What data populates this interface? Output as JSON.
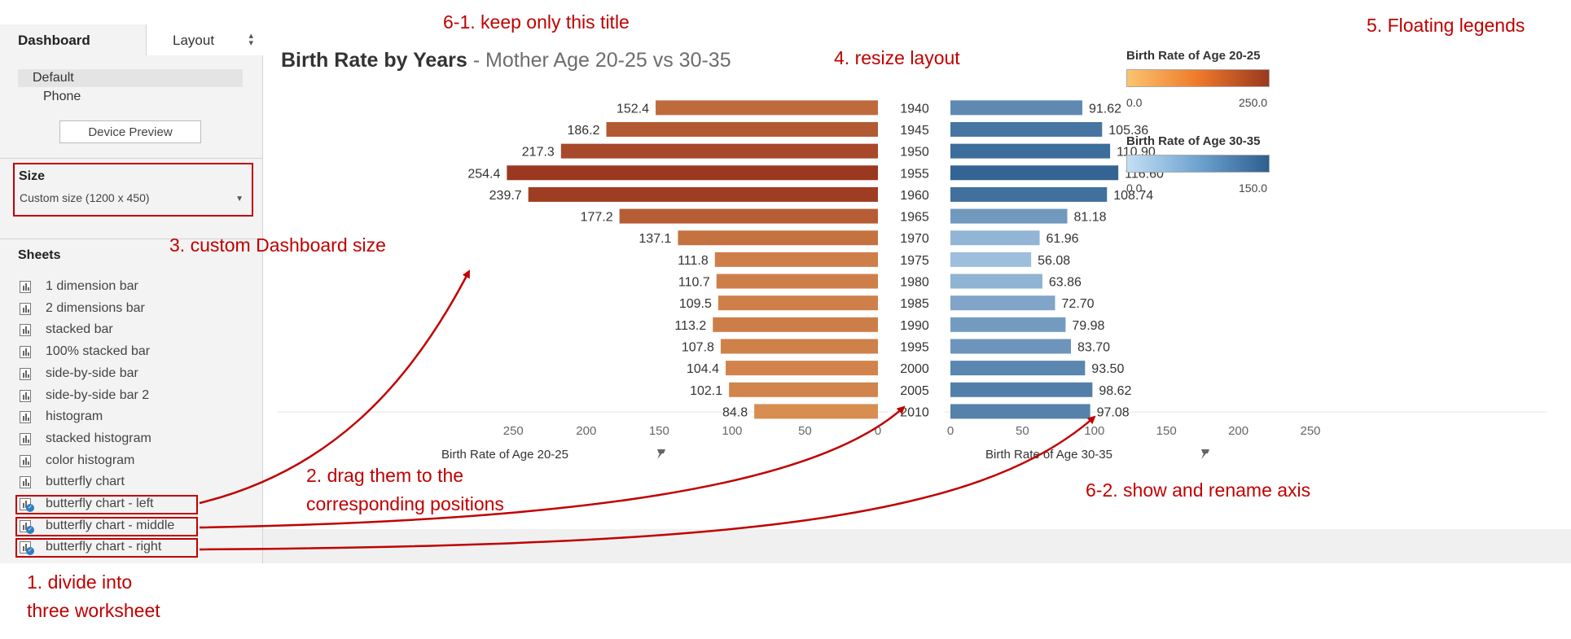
{
  "left_pane": {
    "tabs": {
      "dashboard": "Dashboard",
      "layout": "Layout"
    },
    "devices": {
      "default": "Default",
      "phone": "Phone",
      "preview_button": "Device Preview"
    },
    "size": {
      "title": "Size",
      "value": "Custom size (1200 x 450)"
    },
    "sheets": {
      "title": "Sheets",
      "items": [
        {
          "label": "1 dimension bar"
        },
        {
          "label": "2 dimensions bar"
        },
        {
          "label": "stacked bar"
        },
        {
          "label": "100% stacked bar"
        },
        {
          "label": "side-by-side bar"
        },
        {
          "label": "side-by-side bar 2"
        },
        {
          "label": "histogram"
        },
        {
          "label": "stacked histogram"
        },
        {
          "label": "color histogram"
        },
        {
          "label": "butterfly chart"
        },
        {
          "label": "butterfly chart - left"
        },
        {
          "label": "butterfly chart - middle"
        },
        {
          "label": "butterfly chart - right"
        }
      ]
    }
  },
  "dashboard": {
    "title_main": "Birth Rate by Years",
    "title_sub": " - Mother Age 20-25 vs 30-35"
  },
  "chart_data": {
    "type": "bar",
    "orientation": "horizontal-butterfly",
    "categories": [
      "1940",
      "1945",
      "1950",
      "1955",
      "1960",
      "1965",
      "1970",
      "1975",
      "1980",
      "1985",
      "1990",
      "1995",
      "2000",
      "2005",
      "2010"
    ],
    "series": [
      {
        "name": "Birth Rate of Age 20-25",
        "values": [
          152.4,
          186.2,
          217.3,
          254.4,
          239.7,
          177.2,
          137.1,
          111.8,
          110.7,
          109.5,
          113.2,
          107.8,
          104.4,
          102.1,
          84.8
        ],
        "labels": [
          "152.4",
          "186.2",
          "217.3",
          "254.4",
          "239.7",
          "177.2",
          "137.1",
          "111.8",
          "110.7",
          "109.5",
          "113.2",
          "107.8",
          "104.4",
          "102.1",
          "84.8"
        ],
        "color_scale": [
          "#f7b86a",
          "#9b3820"
        ],
        "direction": "left"
      },
      {
        "name": "Birth Rate of Age 30-35",
        "values": [
          91.62,
          105.36,
          110.9,
          116.6,
          108.74,
          81.18,
          61.96,
          56.08,
          63.86,
          72.7,
          79.98,
          83.7,
          93.5,
          98.62,
          97.08
        ],
        "labels": [
          "91.62",
          "105.36",
          "110.90",
          "116.60",
          "108.74",
          "81.18",
          "61.96",
          "56.08",
          "63.86",
          "72.70",
          "79.98",
          "83.70",
          "93.50",
          "98.62",
          "97.08"
        ],
        "color_scale": [
          "#b9d6ef",
          "#2d5f8f"
        ],
        "direction": "right"
      }
    ],
    "left_axis": {
      "title": "Birth Rate of Age 20-25",
      "ticks": [
        250,
        200,
        150,
        100,
        50,
        0
      ],
      "tick_labels": [
        "250",
        "200",
        "150",
        "100",
        "50",
        "0"
      ],
      "range": [
        0,
        270
      ]
    },
    "right_axis": {
      "title": "Birth Rate of Age 30-35",
      "ticks": [
        0,
        50,
        100,
        150,
        200,
        250
      ],
      "tick_labels": [
        "0",
        "50",
        "100",
        "150",
        "200",
        "250"
      ],
      "range": [
        0,
        270
      ]
    },
    "legends": [
      {
        "title": "Birth Rate of Age 20-25",
        "min": "0.0",
        "max": "250.0",
        "colors": [
          "#fbc470",
          "#9b3820"
        ]
      },
      {
        "title": "Birth Rate of Age 30-35",
        "min": "0.0",
        "max": "150.0",
        "colors": [
          "#c3dff5",
          "#2d5f8f"
        ]
      }
    ]
  },
  "annotations": {
    "a1": "6-1. keep only this title",
    "a2": "4. resize layout",
    "a3": "5. Floating legends",
    "a4": "3. custom Dashboard size",
    "a5": "2. drag them to the",
    "a6": "corresponding positions",
    "a7": "6-2. show and rename axis",
    "a8": "1. divide into",
    "a9": "three worksheet"
  },
  "colors": {
    "annotation": "#c00000",
    "orange_dark": "#9b3820",
    "orange_light": "#f7b86a",
    "blue_dark": "#2d5f8f",
    "blue_light": "#b9d6ef"
  }
}
